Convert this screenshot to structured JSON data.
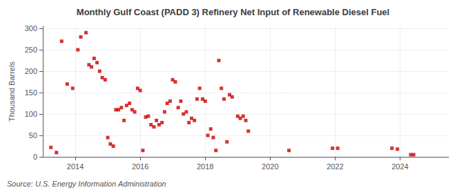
{
  "chart_data": {
    "type": "scatter",
    "title": "Monthly Gulf Coast (PADD 3) Refinery Net Input of Renewable Diesel Fuel",
    "ylabel": "Thousand Barrels",
    "annotations": [
      "Source: U.S. Energy Information Administration"
    ],
    "color": "#cc0000",
    "marker": "square",
    "grid": true,
    "xlim": [
      2013.0,
      2025.5
    ],
    "ylim": [
      0,
      305
    ],
    "xticks": [
      2014,
      2016,
      2018,
      2020,
      2022,
      2024
    ],
    "yticks": [
      0,
      50,
      100,
      150,
      200,
      250,
      300
    ],
    "x": [
      2013.25,
      2013.42,
      2013.58,
      2013.75,
      2013.92,
      2014.08,
      2014.17,
      2014.33,
      2014.42,
      2014.5,
      2014.58,
      2014.67,
      2014.75,
      2014.83,
      2014.92,
      2015.0,
      2015.08,
      2015.17,
      2015.25,
      2015.33,
      2015.42,
      2015.5,
      2015.58,
      2015.67,
      2015.75,
      2015.83,
      2015.92,
      2016.0,
      2016.08,
      2016.17,
      2016.25,
      2016.33,
      2016.42,
      2016.5,
      2016.58,
      2016.67,
      2016.75,
      2016.83,
      2016.92,
      2017.0,
      2017.08,
      2017.17,
      2017.25,
      2017.33,
      2017.42,
      2017.5,
      2017.58,
      2017.67,
      2017.75,
      2017.83,
      2017.92,
      2018.0,
      2018.08,
      2018.17,
      2018.25,
      2018.33,
      2018.42,
      2018.5,
      2018.58,
      2018.67,
      2018.75,
      2018.83,
      2019.0,
      2019.08,
      2019.17,
      2019.25,
      2019.33,
      2020.58,
      2021.92,
      2022.08,
      2023.75,
      2023.92,
      2024.33,
      2024.42
    ],
    "values": [
      22,
      10,
      270,
      170,
      160,
      250,
      280,
      290,
      215,
      210,
      230,
      220,
      200,
      185,
      180,
      45,
      30,
      25,
      110,
      110,
      115,
      85,
      120,
      125,
      110,
      105,
      160,
      155,
      15,
      93,
      95,
      75,
      70,
      85,
      75,
      80,
      105,
      125,
      130,
      180,
      175,
      115,
      130,
      100,
      105,
      80,
      90,
      85,
      135,
      160,
      135,
      130,
      50,
      65,
      45,
      15,
      225,
      160,
      135,
      35,
      145,
      140,
      95,
      90,
      95,
      85,
      60,
      15,
      20,
      20,
      20,
      18,
      5,
      5
    ]
  }
}
